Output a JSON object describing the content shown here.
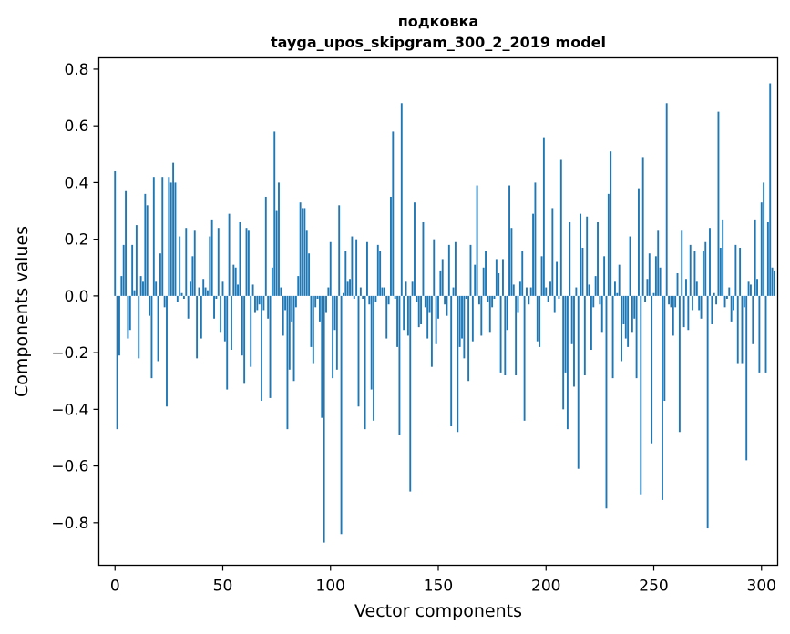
{
  "chart_data": {
    "type": "bar",
    "title_line1": "подковка",
    "title_line2": "tayga_upos_skipgram_300_2_2019 model",
    "xlabel": "Vector components",
    "ylabel": "Components values",
    "xlim": [
      -7.5,
      307.5
    ],
    "ylim": [
      -0.95,
      0.84
    ],
    "x_ticks": [
      0,
      50,
      100,
      150,
      200,
      250,
      300
    ],
    "y_ticks": [
      -0.8,
      -0.6,
      -0.4,
      -0.2,
      0.0,
      0.2,
      0.4,
      0.6,
      0.8
    ],
    "x_tick_labels": [
      "0",
      "50",
      "100",
      "150",
      "200",
      "250",
      "300"
    ],
    "y_tick_labels": [
      "−0.8",
      "−0.6",
      "−0.4",
      "−0.2",
      "0.0",
      "0.2",
      "0.4",
      "0.6",
      "0.8"
    ],
    "bar_color": "#1f77b4",
    "values": [
      0.44,
      -0.47,
      -0.21,
      0.07,
      0.18,
      0.37,
      -0.15,
      -0.12,
      0.18,
      0.02,
      0.25,
      -0.22,
      0.07,
      0.05,
      0.36,
      0.32,
      -0.07,
      -0.29,
      0.42,
      0.05,
      -0.23,
      0.15,
      0.42,
      -0.04,
      -0.39,
      0.42,
      0.4,
      0.47,
      0.4,
      -0.02,
      0.21,
      0.01,
      -0.01,
      0.24,
      -0.08,
      0.05,
      0.14,
      0.23,
      -0.22,
      0.03,
      -0.15,
      0.06,
      0.03,
      0.02,
      0.21,
      0.27,
      -0.08,
      -0.01,
      0.24,
      -0.13,
      0.05,
      -0.16,
      -0.33,
      0.29,
      -0.19,
      0.11,
      0.1,
      0.04,
      0.26,
      -0.21,
      -0.31,
      0.24,
      0.23,
      -0.25,
      0.04,
      -0.06,
      -0.05,
      -0.03,
      -0.37,
      -0.05,
      0.35,
      -0.08,
      -0.36,
      0.1,
      0.58,
      0.3,
      0.4,
      0.03,
      -0.14,
      -0.05,
      -0.47,
      -0.26,
      -0.09,
      -0.3,
      -0.04,
      0.07,
      0.33,
      0.31,
      0.31,
      0.23,
      0.15,
      -0.18,
      -0.24,
      -0.04,
      -0.01,
      -0.09,
      -0.43,
      -0.87,
      -0.06,
      0.03,
      0.19,
      -0.29,
      -0.12,
      -0.26,
      0.32,
      -0.84,
      0.01,
      0.16,
      0.05,
      0.06,
      0.21,
      -0.01,
      0.2,
      -0.39,
      0.03,
      -0.01,
      -0.47,
      0.19,
      -0.03,
      -0.33,
      -0.44,
      -0.02,
      0.18,
      0.16,
      0.03,
      0.03,
      -0.15,
      -0.03,
      0.35,
      0.58,
      -0.01,
      -0.18,
      -0.49,
      0.68,
      -0.12,
      0.05,
      -0.14,
      -0.69,
      0.05,
      0.33,
      -0.02,
      -0.11,
      -0.1,
      0.26,
      -0.04,
      -0.15,
      -0.06,
      -0.25,
      0.2,
      -0.17,
      -0.08,
      0.09,
      0.13,
      -0.03,
      -0.07,
      0.18,
      -0.46,
      0.03,
      0.19,
      -0.48,
      -0.18,
      -0.15,
      -0.22,
      -0.01,
      -0.3,
      0.18,
      -0.16,
      0.11,
      0.39,
      -0.03,
      -0.14,
      0.1,
      0.16,
      -0.02,
      -0.13,
      -0.04,
      -0.01,
      0.13,
      0.08,
      -0.27,
      0.13,
      -0.28,
      -0.12,
      0.39,
      0.24,
      0.04,
      -0.28,
      -0.06,
      0.05,
      0.16,
      -0.44,
      0.03,
      -0.03,
      0.03,
      0.29,
      0.4,
      -0.16,
      -0.18,
      0.14,
      0.56,
      0.03,
      -0.02,
      0.05,
      0.31,
      -0.06,
      0.12,
      -0.01,
      0.48,
      -0.4,
      -0.27,
      -0.47,
      0.26,
      -0.17,
      -0.32,
      0.03,
      -0.61,
      0.29,
      0.17,
      -0.28,
      0.28,
      0.04,
      -0.19,
      -0.04,
      0.07,
      0.26,
      -0.03,
      -0.13,
      0.14,
      -0.75,
      0.36,
      0.51,
      -0.29,
      0.05,
      0.01,
      0.11,
      -0.23,
      -0.1,
      -0.15,
      -0.18,
      0.21,
      -0.13,
      -0.08,
      -0.29,
      0.38,
      -0.7,
      0.49,
      -0.02,
      0.06,
      0.15,
      -0.52,
      0.01,
      0.14,
      0.23,
      0.1,
      -0.72,
      -0.37,
      0.68,
      -0.03,
      -0.04,
      -0.14,
      -0.04,
      0.08,
      -0.48,
      0.23,
      -0.11,
      0.06,
      -0.12,
      0.18,
      -0.05,
      0.16,
      0.05,
      -0.05,
      -0.08,
      0.16,
      0.19,
      -0.82,
      0.24,
      -0.1,
      0.01,
      -0.03,
      0.65,
      0.17,
      0.27,
      -0.04,
      -0.01,
      0.03,
      -0.09,
      -0.05,
      0.18,
      -0.24,
      0.17,
      -0.24,
      -0.04,
      -0.58,
      0.05,
      0.04,
      -0.17,
      0.27,
      0.06,
      -0.27,
      0.33,
      0.4,
      -0.27,
      0.26,
      0.75,
      0.1,
      0.09
    ]
  }
}
